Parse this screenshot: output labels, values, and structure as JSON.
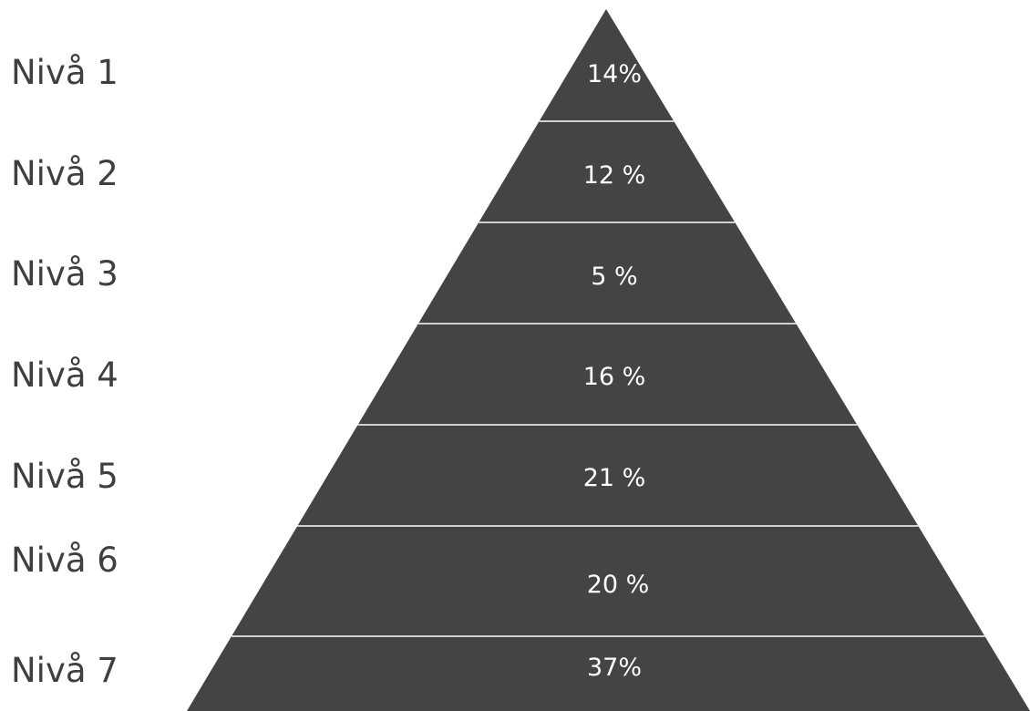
{
  "colors": {
    "pyramid_fill": "#444444",
    "divider": "#ffffff",
    "label_text": "#3f3f3f",
    "value_text": "#ffffff"
  },
  "levels": [
    {
      "label": "Nivå 1",
      "value": "14%"
    },
    {
      "label": "Nivå 2",
      "value": "12 %"
    },
    {
      "label": "Nivå 3",
      "value": "5 %"
    },
    {
      "label": "Nivå 4",
      "value": "16 %"
    },
    {
      "label": "Nivå 5",
      "value": "21 %"
    },
    {
      "label": "Nivå 6",
      "value": "20 %"
    },
    {
      "label": "Nivå 7",
      "value": "37%"
    }
  ]
}
